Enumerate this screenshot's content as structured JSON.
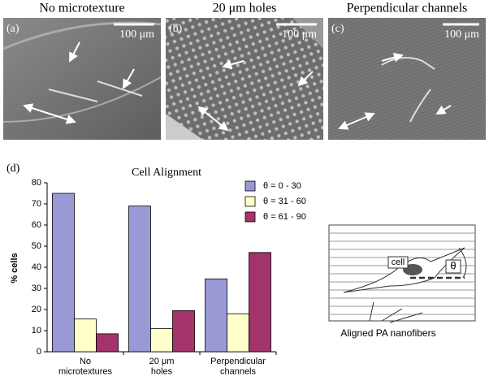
{
  "panels": [
    {
      "title": "No microtexture",
      "label": "(a)",
      "scale": "100 μm"
    },
    {
      "title": "20 μm holes",
      "label": "(b)",
      "scale": "100 μm"
    },
    {
      "title": "Perpendicular channels",
      "label": "(c)",
      "scale": "100 μm"
    }
  ],
  "chart_label": "(d)",
  "chart_data": {
    "type": "bar",
    "title": "Cell Alignment",
    "y_label": "% cells",
    "categories": [
      "No\nmicrotextures",
      "20 μm\nholes",
      "Perpendicular\nchannels"
    ],
    "series": [
      {
        "name": "θ = 0 - 30",
        "color": "#9999d6",
        "values": [
          75,
          69,
          34.5
        ]
      },
      {
        "name": "θ = 31 - 60",
        "color": "#ffffcc",
        "values": [
          15.5,
          11,
          18
        ]
      },
      {
        "name": "θ = 61 - 90",
        "color": "#a3336b",
        "values": [
          8.5,
          19.5,
          47
        ]
      }
    ],
    "ylim": [
      0,
      80
    ],
    "yticks": [
      0,
      10,
      20,
      30,
      40,
      50,
      60,
      70,
      80
    ],
    "grid": false,
    "legend": "top-right"
  },
  "diagram": {
    "cell": "cell",
    "angle": "θ",
    "caption": "Aligned PA nanofibers"
  }
}
